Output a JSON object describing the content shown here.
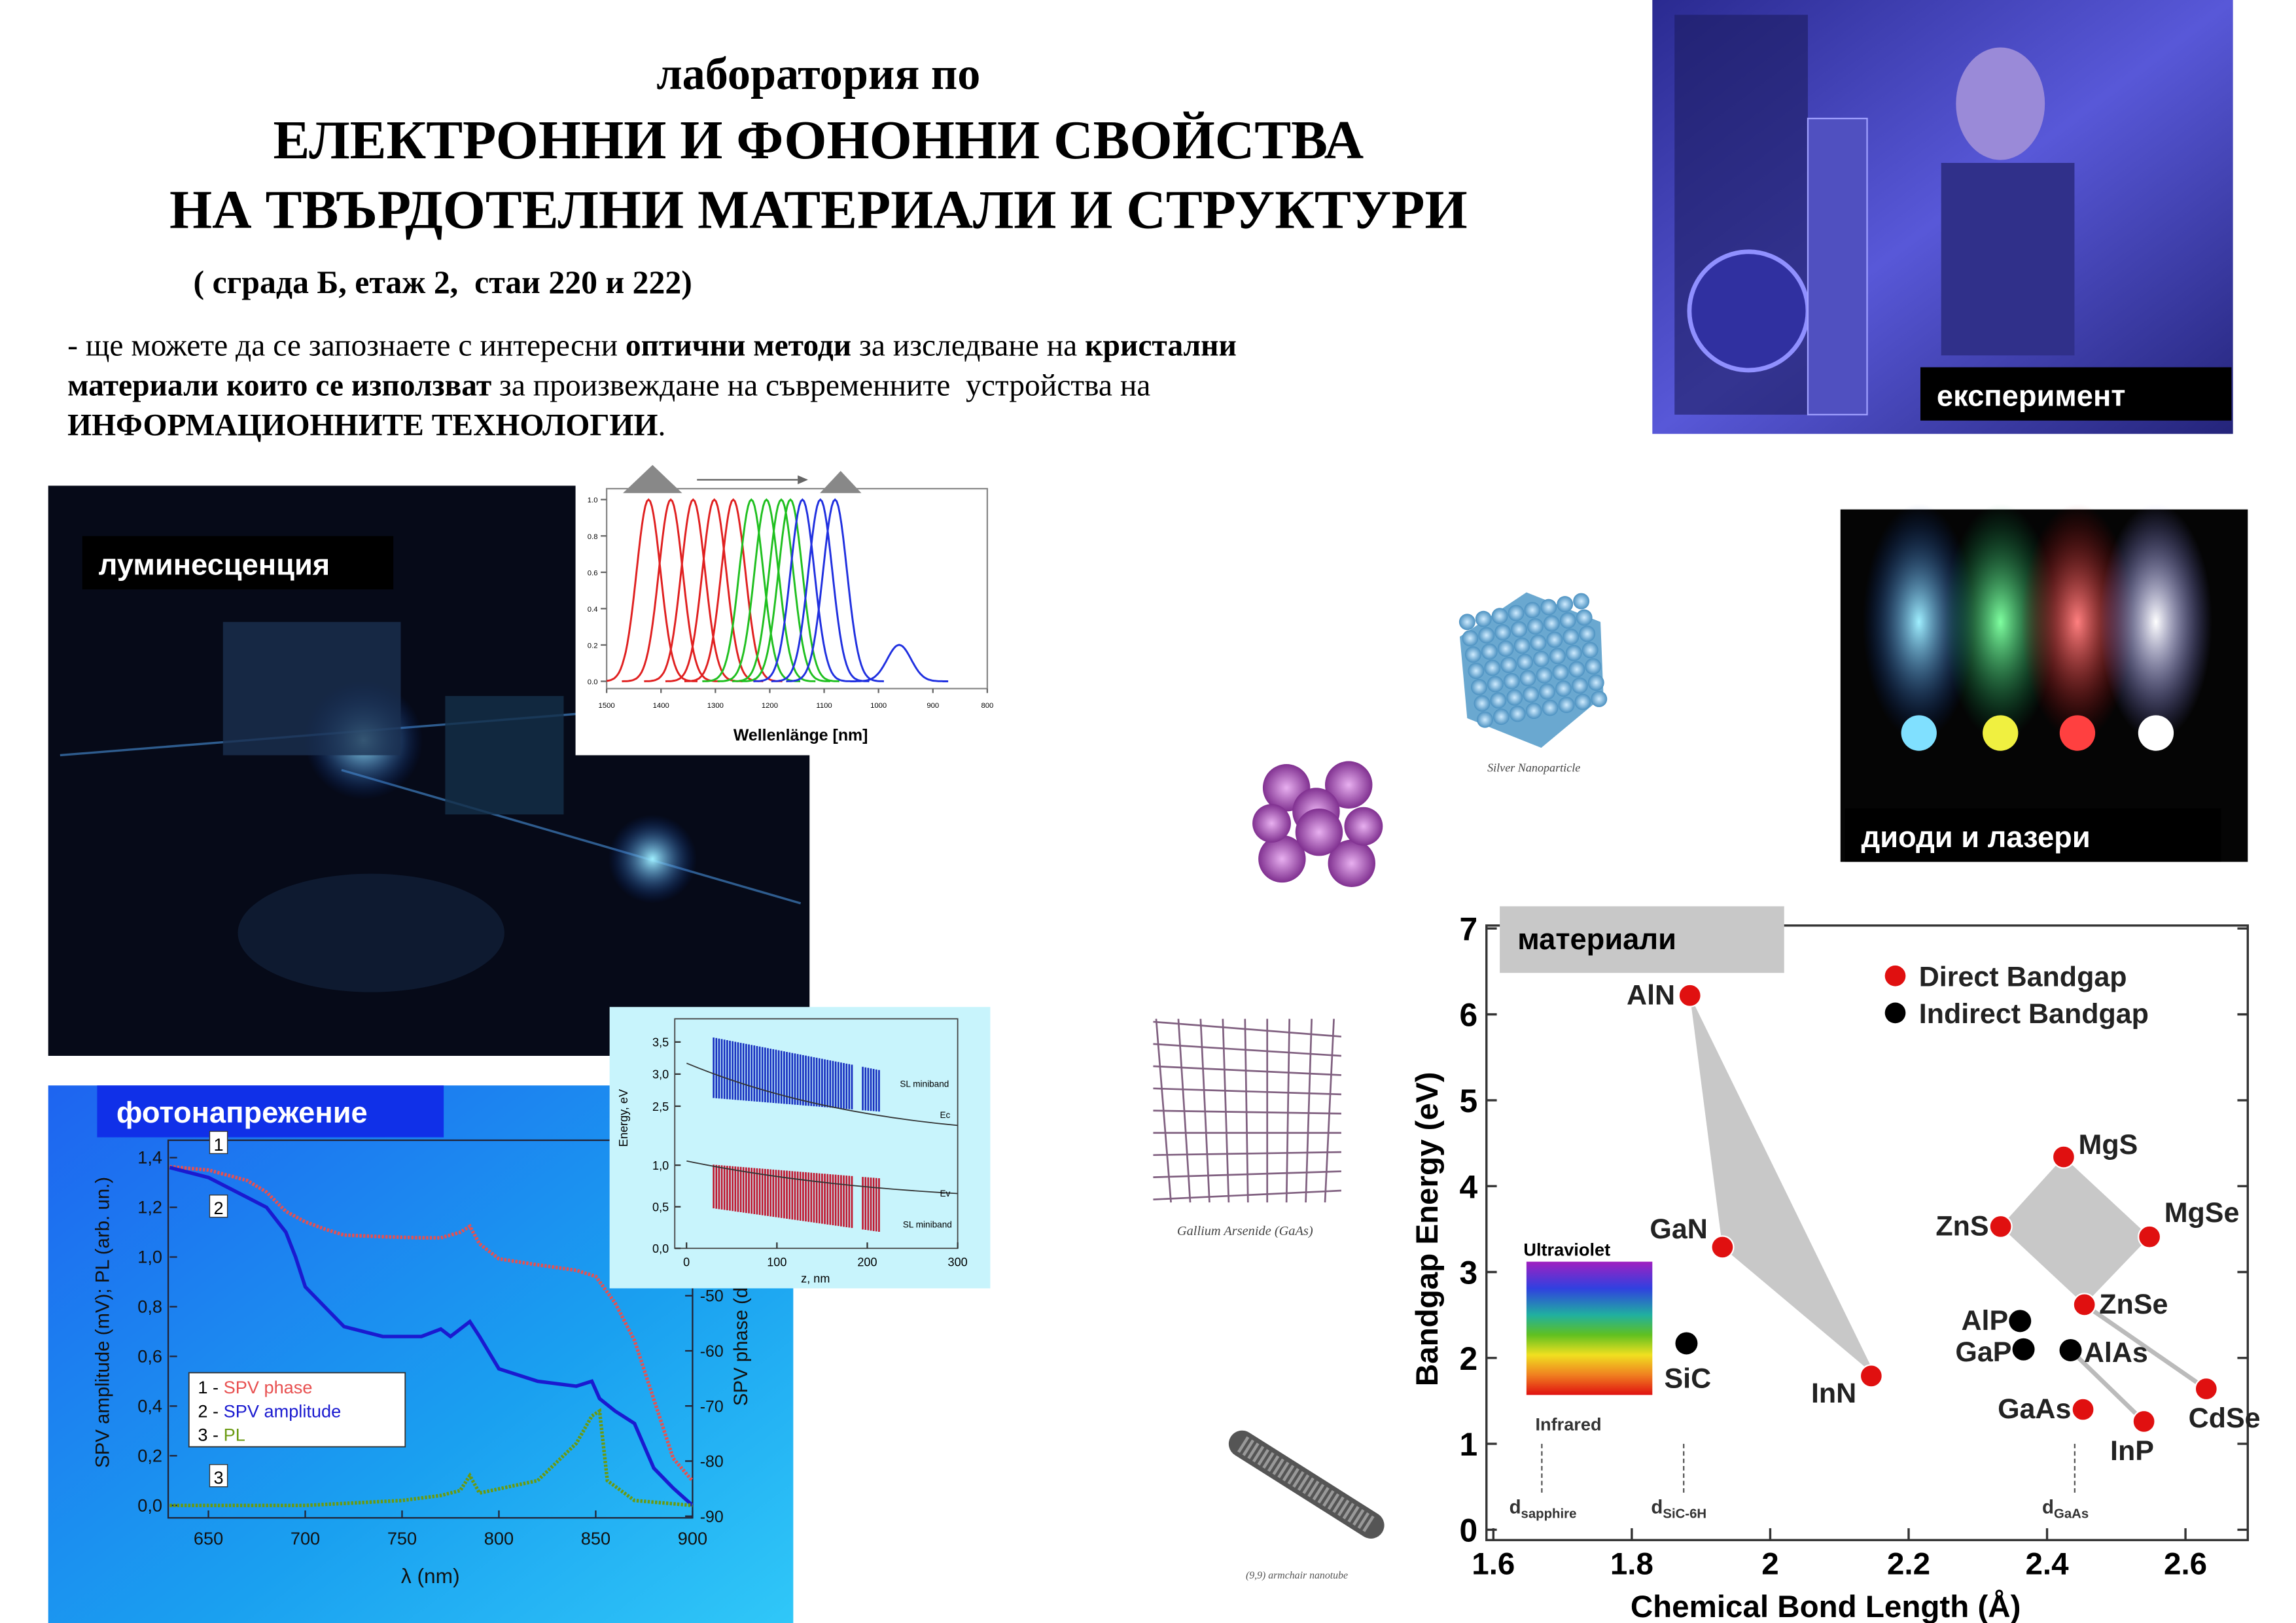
{
  "header": {
    "line1": "лаборатория по",
    "line2": "ЕЛЕКТРОННИ И ФОНОННИ СВОЙСТВА",
    "line3": "НА ТВЪРДОТЕЛНИ МАТЕРИАЛИ И СТРУКТУРИ",
    "location": "( сграда Б, етаж 2,  стаи 220 и 222)"
  },
  "description": [
    [
      {
        "text": "- ще можете да се запознаете с интересни ",
        "bold": false
      },
      {
        "text": "оптични методи",
        "bold": true
      },
      {
        "text": " за изследване на ",
        "bold": false
      },
      {
        "text": "кристални",
        "bold": true
      }
    ],
    [
      {
        "text": "материали които се използват",
        "bold": true
      },
      {
        "text": " за произвеждане на съвременните  устройства на",
        "bold": false
      }
    ],
    [
      {
        "text": "ИНФОРМАЦИОННИТЕ ТЕХНОЛОГИИ",
        "bold": true
      },
      {
        "text": ".",
        "bold": false
      }
    ]
  ],
  "photos": {
    "experiment": "експеримент",
    "luminescence": "луминесценция",
    "diodes": "диоди и лазери"
  },
  "structures": {
    "silver": "Silver Nanoparticle",
    "gaas": "Gallium Arsenide (GaAs)",
    "nanotube": "(9,9) armchair nanotube"
  },
  "spectrum_chart": {
    "x_label": "Wellenlänge [nm]",
    "xlim": [
      1500,
      800
    ],
    "ylim": [
      -0.04,
      1.06
    ],
    "xticks": [
      1500,
      1400,
      1300,
      1200,
      1100,
      1000,
      900,
      800
    ],
    "yticks": [
      {
        "value": 0,
        "label": "0.0"
      },
      {
        "value": 0.2,
        "label": "0.2"
      },
      {
        "value": 0.4,
        "label": "0.4"
      },
      {
        "value": 0.6,
        "label": "0.6"
      },
      {
        "value": 0.8,
        "label": "0.8"
      },
      {
        "value": 1,
        "label": "1.0"
      }
    ],
    "series": [
      {
        "color": "#e02020",
        "x": [
          1423,
          1382,
          1341,
          1302,
          1267
        ],
        "values": [
          1,
          1,
          1,
          1,
          1
        ]
      },
      {
        "color": "#20c020",
        "x": [
          1234,
          1206,
          1179,
          1162
        ],
        "values": [
          1,
          1,
          1,
          1
        ]
      },
      {
        "color": "#2030e0",
        "x": [
          1140,
          1107,
          1080,
          962
        ],
        "values": [
          1,
          1,
          1,
          0.2
        ]
      }
    ]
  },
  "spv_chart": {
    "type": "line",
    "label": "фотонапрежение",
    "x_label": "λ (nm)",
    "y_label": "SPV amplitude (mV); PL (arb. un.)",
    "y2_label": "SPV phase (deg)",
    "xlim": [
      630,
      900
    ],
    "ylim": [
      -0.05,
      1.47
    ],
    "y2lim": [
      -90.3,
      -21.8
    ],
    "xticks": [
      650,
      700,
      750,
      800,
      850,
      900
    ],
    "yticks": [
      {
        "value": 0,
        "label": "0,0"
      },
      {
        "value": 0.2,
        "label": "0,2"
      },
      {
        "value": 0.4,
        "label": "0,4"
      },
      {
        "value": 0.6,
        "label": "0,6"
      },
      {
        "value": 0.8,
        "label": "0,8"
      },
      {
        "value": 1,
        "label": "1,0"
      },
      {
        "value": 1.2,
        "label": "1,2"
      },
      {
        "value": 1.4,
        "label": "1,4"
      }
    ],
    "y2ticks": [
      -90,
      -80,
      -70,
      -60,
      -50
    ],
    "series": [
      {
        "curve_label": "1",
        "legend_key": "1 - ",
        "name": "SPV phase",
        "color": "#e85050",
        "axis": "y2",
        "x": [
          630,
          650,
          670,
          680,
          690,
          700,
          710,
          720,
          740,
          760,
          770,
          780,
          785,
          790,
          800,
          820,
          840,
          850,
          860,
          870,
          880,
          890,
          900
        ],
        "values": [
          -26.6,
          -27.2,
          -29.1,
          -31.2,
          -34.7,
          -36.6,
          -37.9,
          -39,
          -39.3,
          -39.5,
          -39.5,
          -38.5,
          -37.4,
          -40.6,
          -43.3,
          -44.4,
          -45.4,
          -46.5,
          -51.3,
          -58.1,
          -68.8,
          -79.5,
          -83.6
        ]
      },
      {
        "curve_label": "2",
        "legend_key": "2 - ",
        "name": "SPV amplitude",
        "color": "#1a1ad0",
        "x": [
          630,
          650,
          680,
          690,
          695,
          700,
          710,
          720,
          740,
          760,
          770,
          775,
          785,
          790,
          800,
          820,
          840,
          848,
          852,
          860,
          870,
          880,
          890,
          900
        ],
        "values": [
          1.36,
          1.32,
          1.2,
          1.1,
          1.0,
          0.88,
          0.8,
          0.72,
          0.68,
          0.68,
          0.71,
          0.68,
          0.74,
          0.68,
          0.55,
          0.5,
          0.48,
          0.5,
          0.43,
          0.38,
          0.33,
          0.15,
          0.07,
          0
        ]
      },
      {
        "curve_label": "3",
        "legend_key": "3 - ",
        "name": "PL",
        "color": "#6a9a10",
        "x": [
          630,
          700,
          750,
          770,
          780,
          785,
          790,
          820,
          840,
          848,
          852,
          856,
          870,
          900
        ],
        "values": [
          0,
          0,
          0.02,
          0.04,
          0.06,
          0.12,
          0.05,
          0.1,
          0.25,
          0.36,
          0.38,
          0.1,
          0.02,
          0
        ]
      }
    ]
  },
  "energy_chart": {
    "y_label": "Energy, eV",
    "x_label": "z, nm",
    "xlim": [
      -13,
      300
    ],
    "ylim_upper": [
      2.2,
      3.7
    ],
    "ylim_lower": [
      0,
      1.3
    ],
    "xticks": [
      0,
      100,
      200,
      300
    ],
    "yticks_upper": [
      {
        "value": 2.5,
        "label": "2,5"
      },
      {
        "value": 3,
        "label": "3,0"
      },
      {
        "value": 3.5,
        "label": "3,5"
      }
    ],
    "yticks_lower": [
      {
        "value": 0,
        "label": "0,0"
      },
      {
        "value": 0.5,
        "label": "0,5"
      },
      {
        "value": 1,
        "label": "1,0"
      }
    ],
    "upper_band_label": "SL miniband",
    "upper_edge_label": "Ec",
    "lower_edge_label": "Ev",
    "lower_band_label": "SL miniband"
  },
  "bandgap_chart": {
    "type": "scatter",
    "label": "материали",
    "x_label": "Chemical Bond Length (Å)",
    "y_label": "Bandgap Energy (eV)",
    "xlim": [
      1.59,
      2.69
    ],
    "ylim": [
      0,
      7
    ],
    "xticks": [
      1.6,
      1.8,
      2,
      2.2,
      2.4,
      2.6
    ],
    "yticks": [
      0,
      1,
      2,
      3,
      4,
      5,
      6,
      7
    ],
    "series": [
      {
        "name": "Direct Bandgap",
        "color": "#e01010",
        "labels": [
          "AlN",
          "GaN",
          "InN",
          "MgS",
          "ZnS",
          "MgSe",
          "ZnSe",
          "GaAs",
          "InP",
          "CdSe"
        ],
        "x": [
          1.884,
          1.931,
          2.146,
          2.424,
          2.333,
          2.548,
          2.454,
          2.452,
          2.54,
          2.63
        ],
        "values": [
          6.22,
          3.29,
          1.79,
          4.34,
          3.53,
          3.41,
          2.62,
          1.4,
          1.26,
          1.64
        ]
      },
      {
        "name": "Indirect Bandgap",
        "color": "#000000",
        "labels": [
          "SiC",
          "AlP",
          "GaP",
          "AlAs"
        ],
        "x": [
          1.879,
          2.361,
          2.366,
          2.434
        ],
        "values": [
          2.17,
          2.43,
          2.1,
          2.09
        ]
      }
    ],
    "spectrum": {
      "top": "Ultraviolet",
      "bottom": "Infrared"
    },
    "markers": [
      {
        "main": "d",
        "sub": "sapphire",
        "x": 1.67
      },
      {
        "main": "d",
        "sub": "SiC-6H",
        "x": 1.875
      },
      {
        "main": "d",
        "sub": "GaAs",
        "x": 2.44
      }
    ]
  }
}
